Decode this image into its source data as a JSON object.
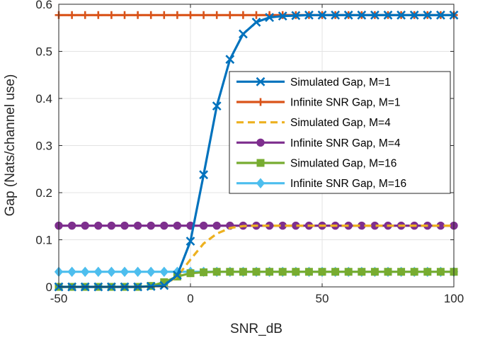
{
  "chart_data": {
    "type": "line",
    "xlabel": "SNR_dB",
    "ylabel": "Gap (Nats/channel use)",
    "xlim": [
      -50,
      100
    ],
    "ylim": [
      0,
      0.6
    ],
    "xticks": [
      -50,
      0,
      50,
      100
    ],
    "yticks": [
      0,
      0.1,
      0.2,
      0.3,
      0.4,
      0.5,
      0.6
    ],
    "grid": true,
    "legend_position": "upper-right",
    "series": [
      {
        "name": "Simulated Gap, M=1",
        "color": "#0072BD",
        "line": "solid",
        "marker": "x",
        "x": [
          -50,
          -45,
          -40,
          -35,
          -30,
          -25,
          -20,
          -15,
          -10,
          -5,
          0,
          5,
          10,
          15,
          20,
          25,
          30,
          35,
          40,
          45,
          50,
          55,
          60,
          65,
          70,
          75,
          80,
          85,
          90,
          95,
          100
        ],
        "y": [
          0,
          0,
          0,
          0,
          0,
          0,
          0,
          0.001,
          0.003,
          0.025,
          0.097,
          0.238,
          0.384,
          0.483,
          0.537,
          0.562,
          0.572,
          0.575,
          0.576,
          0.577,
          0.577,
          0.577,
          0.577,
          0.577,
          0.577,
          0.577,
          0.577,
          0.577,
          0.577,
          0.577,
          0.577
        ]
      },
      {
        "name": "Infinite SNR Gap, M=1",
        "color": "#D95319",
        "line": "solid",
        "marker": "+",
        "x": [
          -50,
          -45,
          -40,
          -35,
          -30,
          -25,
          -20,
          -15,
          -10,
          -5,
          0,
          5,
          10,
          15,
          20,
          25,
          30,
          35,
          40,
          45,
          50,
          55,
          60,
          65,
          70,
          75,
          80,
          85,
          90,
          95,
          100
        ],
        "y": [
          0.577,
          0.577,
          0.577,
          0.577,
          0.577,
          0.577,
          0.577,
          0.577,
          0.577,
          0.577,
          0.577,
          0.577,
          0.577,
          0.577,
          0.577,
          0.577,
          0.577,
          0.577,
          0.577,
          0.577,
          0.577,
          0.577,
          0.577,
          0.577,
          0.577,
          0.577,
          0.577,
          0.577,
          0.577,
          0.577,
          0.577
        ]
      },
      {
        "name": "Simulated Gap, M=4",
        "color": "#EDB120",
        "line": "dashed",
        "marker": "none",
        "x": [
          -50,
          -45,
          -40,
          -35,
          -30,
          -25,
          -20,
          -15,
          -10,
          -5,
          0,
          5,
          10,
          15,
          20,
          25,
          30,
          35,
          40,
          45,
          50,
          55,
          60,
          65,
          70,
          75,
          80,
          85,
          90,
          95,
          100
        ],
        "y": [
          0,
          0,
          0,
          0,
          0,
          0,
          0,
          0.001,
          0.004,
          0.022,
          0.058,
          0.092,
          0.113,
          0.125,
          0.129,
          0.13,
          0.13,
          0.13,
          0.13,
          0.13,
          0.13,
          0.13,
          0.13,
          0.13,
          0.13,
          0.13,
          0.13,
          0.13,
          0.13,
          0.13,
          0.13
        ]
      },
      {
        "name": "Infinite SNR Gap, M=4",
        "color": "#7E2F8E",
        "line": "solid",
        "marker": "o",
        "x": [
          -50,
          -45,
          -40,
          -35,
          -30,
          -25,
          -20,
          -15,
          -10,
          -5,
          0,
          5,
          10,
          15,
          20,
          25,
          30,
          35,
          40,
          45,
          50,
          55,
          60,
          65,
          70,
          75,
          80,
          85,
          90,
          95,
          100
        ],
        "y": [
          0.13,
          0.13,
          0.13,
          0.13,
          0.13,
          0.13,
          0.13,
          0.13,
          0.13,
          0.13,
          0.13,
          0.13,
          0.13,
          0.13,
          0.13,
          0.13,
          0.13,
          0.13,
          0.13,
          0.13,
          0.13,
          0.13,
          0.13,
          0.13,
          0.13,
          0.13,
          0.13,
          0.13,
          0.13,
          0.13,
          0.13
        ]
      },
      {
        "name": "Simulated Gap, M=16",
        "color": "#77AC30",
        "line": "solid",
        "marker": "s",
        "x": [
          -50,
          -45,
          -40,
          -35,
          -30,
          -25,
          -20,
          -15,
          -10,
          -5,
          0,
          5,
          10,
          15,
          20,
          25,
          30,
          35,
          40,
          45,
          50,
          55,
          60,
          65,
          70,
          75,
          80,
          85,
          90,
          95,
          100
        ],
        "y": [
          0,
          0,
          0,
          0,
          0,
          0,
          0,
          0.002,
          0.01,
          0.022,
          0.029,
          0.031,
          0.032,
          0.032,
          0.032,
          0.032,
          0.032,
          0.032,
          0.032,
          0.032,
          0.032,
          0.032,
          0.032,
          0.032,
          0.032,
          0.032,
          0.032,
          0.032,
          0.032,
          0.032,
          0.032
        ]
      },
      {
        "name": "Infinite SNR Gap, M=16",
        "color": "#4DBEEE",
        "line": "solid",
        "marker": "d",
        "x": [
          -50,
          -45,
          -40,
          -35,
          -30,
          -25,
          -20,
          -15,
          -10,
          -5,
          0,
          5,
          10,
          15,
          20,
          25,
          30,
          35,
          40,
          45,
          50,
          55,
          60,
          65,
          70,
          75,
          80,
          85,
          90,
          95,
          100
        ],
        "y": [
          0.032,
          0.032,
          0.032,
          0.032,
          0.032,
          0.032,
          0.032,
          0.032,
          0.032,
          0.032,
          0.032,
          0.032,
          0.032,
          0.032,
          0.032,
          0.032,
          0.032,
          0.032,
          0.032,
          0.032,
          0.032,
          0.032,
          0.032,
          0.032,
          0.032,
          0.032,
          0.032,
          0.032,
          0.032,
          0.032,
          0.032
        ]
      }
    ]
  }
}
